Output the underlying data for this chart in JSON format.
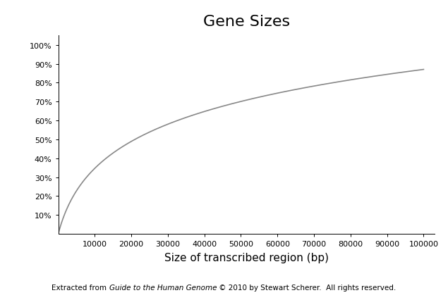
{
  "title": "Gene Sizes",
  "xlabel": "Size of transcribed region (bp)",
  "ylabel_ticks": [
    "10%",
    "20%",
    "30%",
    "40%",
    "50%",
    "60%",
    "70%",
    "80%",
    "90%",
    "100%"
  ],
  "ylabel_values": [
    10,
    20,
    30,
    40,
    50,
    60,
    70,
    80,
    90,
    100
  ],
  "xlim": [
    0,
    103000
  ],
  "ylim": [
    0,
    105
  ],
  "xticks": [
    10000,
    20000,
    30000,
    40000,
    50000,
    60000,
    70000,
    80000,
    90000,
    100000
  ],
  "xtick_labels": [
    "10000",
    "20000",
    "30000",
    "40000",
    "50000",
    "60000",
    "70000",
    "80000",
    "90000",
    "100000"
  ],
  "line_color": "#888888",
  "line_width": 1.2,
  "background_color": "#ffffff",
  "caption_normal1": "Extracted from ",
  "caption_italic": "Guide to the Human Genome",
  "caption_normal2": " © 2010 by Stewart Scherer.  All rights reserved.",
  "caption_fontsize": 7.5,
  "title_fontsize": 16,
  "axis_label_fontsize": 11,
  "tick_fontsize": 8,
  "curve_scale": 3500,
  "curve_max": 87.0
}
